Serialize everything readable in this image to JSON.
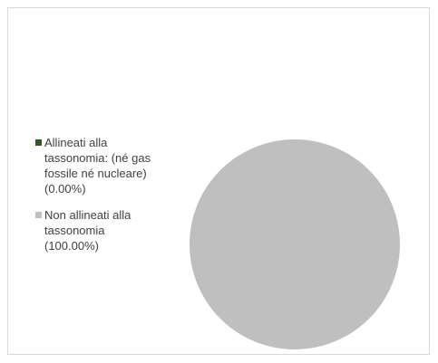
{
  "chart_data": {
    "type": "pie",
    "categories": [
      "Allineati alla tassonomia: (né gas fossile né nucleare)",
      "Non allineati alla tassonomia"
    ],
    "values": [
      0.0,
      100.0
    ],
    "colors": [
      "#375623",
      "#bfbfbf"
    ],
    "legend_position": "left",
    "legend": [
      {
        "label": "Allineati alla\ntassonomia: (né gas\nfossile né nucleare)\n(0.00%)",
        "color": "#375623",
        "value": 0.0
      },
      {
        "label": "Non allineati alla\ntassonomia\n(100.00%)",
        "color": "#bfbfbf",
        "value": 100.0
      }
    ]
  }
}
